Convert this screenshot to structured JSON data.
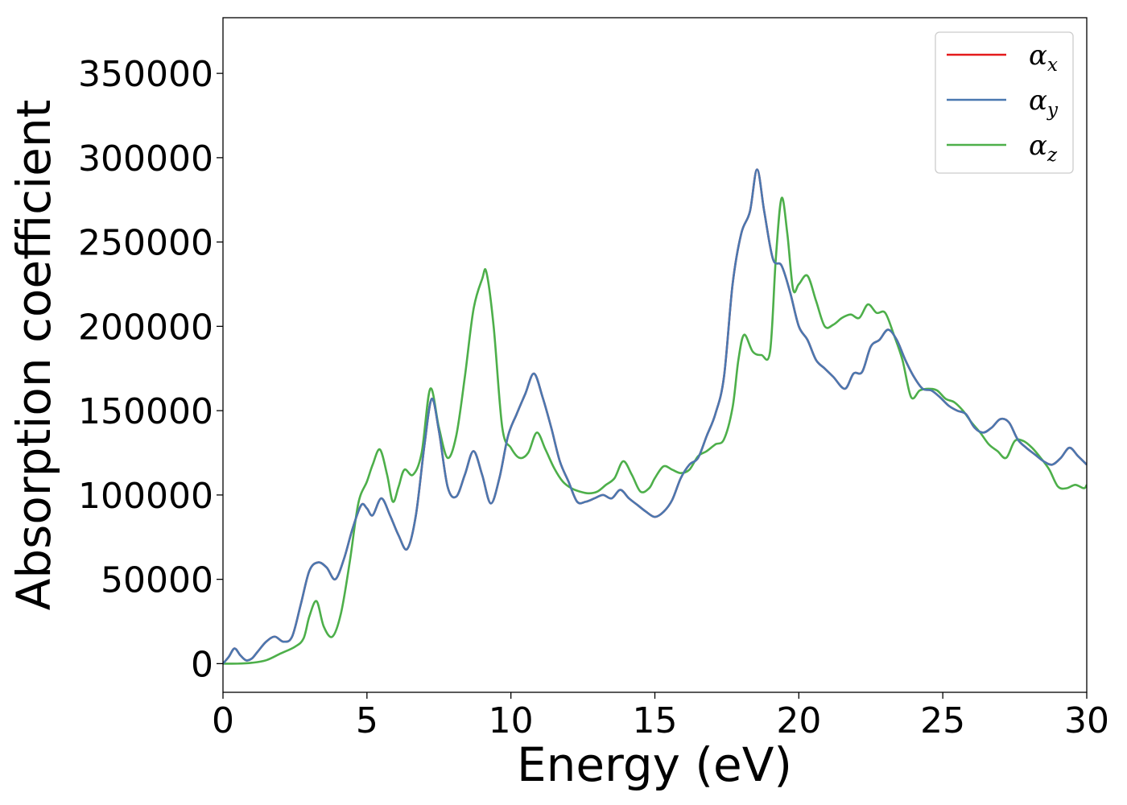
{
  "chart_data": {
    "type": "line",
    "xlabel": "Energy (eV)",
    "ylabel": "Absorption coefficient",
    "xlim": [
      0,
      30
    ],
    "ylim": [
      -17000,
      383000
    ],
    "xticks": [
      0,
      5,
      10,
      15,
      20,
      25,
      30
    ],
    "yticks": [
      0,
      50000,
      100000,
      150000,
      200000,
      250000,
      300000,
      350000
    ],
    "grid": false,
    "legend_position": "top-right",
    "series": [
      {
        "name": "α",
        "subscript": "x",
        "color": "#e41a1c",
        "x": [
          0,
          0.2,
          0.4,
          0.6,
          0.8,
          1.0,
          1.2,
          1.5,
          1.8,
          2.1,
          2.4,
          2.7,
          3.0,
          3.3,
          3.6,
          3.9,
          4.2,
          4.5,
          4.8,
          5.0,
          5.2,
          5.5,
          5.8,
          6.1,
          6.4,
          6.7,
          7.0,
          7.25,
          7.5,
          7.8,
          8.1,
          8.4,
          8.7,
          9.0,
          9.3,
          9.6,
          9.9,
          10.2,
          10.5,
          10.8,
          11.1,
          11.4,
          11.7,
          12.0,
          12.3,
          12.6,
          12.9,
          13.2,
          13.5,
          13.8,
          14.1,
          14.4,
          14.7,
          15.0,
          15.3,
          15.6,
          15.9,
          16.2,
          16.5,
          16.8,
          17.1,
          17.4,
          17.7,
          18.0,
          18.3,
          18.55,
          18.8,
          19.1,
          19.4,
          19.7,
          20.0,
          20.3,
          20.6,
          20.9,
          21.2,
          21.6,
          21.9,
          22.2,
          22.5,
          22.8,
          23.1,
          23.4,
          23.7,
          24.0,
          24.3,
          24.6,
          24.9,
          25.2,
          25.5,
          25.8,
          26.1,
          26.4,
          26.7,
          27.0,
          27.3,
          27.6,
          27.9,
          28.2,
          28.5,
          28.8,
          29.1,
          29.4,
          29.7,
          30.0
        ],
        "y": [
          0,
          4000,
          9000,
          5000,
          2000,
          3000,
          7000,
          13000,
          16000,
          13000,
          16000,
          35000,
          55000,
          60000,
          57000,
          50000,
          62000,
          80000,
          94000,
          92000,
          88000,
          98000,
          88000,
          76000,
          68000,
          88000,
          130000,
          157000,
          138000,
          105000,
          99000,
          112000,
          126000,
          112000,
          95000,
          110000,
          135000,
          148000,
          160000,
          172000,
          158000,
          140000,
          120000,
          108000,
          96000,
          96000,
          98000,
          100000,
          98000,
          103000,
          98000,
          94000,
          90000,
          87000,
          90000,
          97000,
          110000,
          118000,
          122000,
          135000,
          148000,
          170000,
          225000,
          255000,
          268000,
          293000,
          268000,
          240000,
          236000,
          220000,
          200000,
          192000,
          180000,
          175000,
          170000,
          163000,
          172000,
          173000,
          188000,
          192000,
          198000,
          192000,
          180000,
          170000,
          163000,
          162000,
          158000,
          153000,
          150000,
          148000,
          140000,
          137000,
          140000,
          145000,
          143000,
          133000,
          128000,
          124000,
          120000,
          118000,
          122000,
          128000,
          123000,
          118000
        ]
      },
      {
        "name": "α",
        "subscript": "y",
        "color": "#4a78b0",
        "x": [
          0,
          0.2,
          0.4,
          0.6,
          0.8,
          1.0,
          1.2,
          1.5,
          1.8,
          2.1,
          2.4,
          2.7,
          3.0,
          3.3,
          3.6,
          3.9,
          4.2,
          4.5,
          4.8,
          5.0,
          5.2,
          5.5,
          5.8,
          6.1,
          6.4,
          6.7,
          7.0,
          7.25,
          7.5,
          7.8,
          8.1,
          8.4,
          8.7,
          9.0,
          9.3,
          9.6,
          9.9,
          10.2,
          10.5,
          10.8,
          11.1,
          11.4,
          11.7,
          12.0,
          12.3,
          12.6,
          12.9,
          13.2,
          13.5,
          13.8,
          14.1,
          14.4,
          14.7,
          15.0,
          15.3,
          15.6,
          15.9,
          16.2,
          16.5,
          16.8,
          17.1,
          17.4,
          17.7,
          18.0,
          18.3,
          18.55,
          18.8,
          19.1,
          19.4,
          19.7,
          20.0,
          20.3,
          20.6,
          20.9,
          21.2,
          21.6,
          21.9,
          22.2,
          22.5,
          22.8,
          23.1,
          23.4,
          23.7,
          24.0,
          24.3,
          24.6,
          24.9,
          25.2,
          25.5,
          25.8,
          26.1,
          26.4,
          26.7,
          27.0,
          27.3,
          27.6,
          27.9,
          28.2,
          28.5,
          28.8,
          29.1,
          29.4,
          29.7,
          30.0
        ],
        "y": [
          0,
          4000,
          9000,
          5000,
          2000,
          3000,
          7000,
          13000,
          16000,
          13000,
          16000,
          35000,
          55000,
          60000,
          57000,
          50000,
          62000,
          80000,
          94000,
          92000,
          88000,
          98000,
          88000,
          76000,
          68000,
          88000,
          130000,
          157000,
          138000,
          105000,
          99000,
          112000,
          126000,
          112000,
          95000,
          110000,
          135000,
          148000,
          160000,
          172000,
          158000,
          140000,
          120000,
          108000,
          96000,
          96000,
          98000,
          100000,
          98000,
          103000,
          98000,
          94000,
          90000,
          87000,
          90000,
          97000,
          110000,
          118000,
          122000,
          135000,
          148000,
          170000,
          225000,
          255000,
          268000,
          293000,
          268000,
          240000,
          236000,
          220000,
          200000,
          192000,
          180000,
          175000,
          170000,
          163000,
          172000,
          173000,
          188000,
          192000,
          198000,
          192000,
          180000,
          170000,
          163000,
          162000,
          158000,
          153000,
          150000,
          148000,
          140000,
          137000,
          140000,
          145000,
          143000,
          133000,
          128000,
          124000,
          120000,
          118000,
          122000,
          128000,
          123000,
          118000
        ]
      },
      {
        "name": "α",
        "subscript": "z",
        "color": "#4daf4a",
        "x": [
          0,
          0.5,
          1.0,
          1.5,
          2.0,
          2.5,
          2.8,
          3.0,
          3.25,
          3.5,
          3.8,
          4.1,
          4.4,
          4.7,
          5.0,
          5.2,
          5.45,
          5.7,
          5.9,
          6.1,
          6.3,
          6.6,
          6.9,
          7.2,
          7.5,
          7.8,
          8.1,
          8.4,
          8.7,
          9.0,
          9.15,
          9.4,
          9.7,
          10.0,
          10.3,
          10.6,
          10.9,
          11.2,
          11.5,
          11.8,
          12.1,
          12.4,
          12.7,
          13.0,
          13.3,
          13.6,
          13.9,
          14.2,
          14.5,
          14.8,
          15.0,
          15.3,
          15.6,
          15.9,
          16.2,
          16.5,
          16.8,
          17.1,
          17.4,
          17.7,
          17.9,
          18.1,
          18.4,
          18.7,
          19.0,
          19.2,
          19.4,
          19.6,
          19.8,
          20.0,
          20.3,
          20.6,
          20.9,
          21.2,
          21.5,
          21.8,
          22.1,
          22.4,
          22.7,
          23.0,
          23.3,
          23.6,
          23.9,
          24.2,
          24.5,
          24.8,
          25.1,
          25.4,
          25.7,
          26.0,
          26.3,
          26.6,
          26.9,
          27.2,
          27.5,
          27.8,
          28.1,
          28.4,
          28.7,
          29.0,
          29.3,
          29.6,
          29.9,
          30.0
        ],
        "y": [
          0,
          0,
          500,
          2000,
          6000,
          10000,
          15000,
          28000,
          37000,
          22000,
          16000,
          30000,
          60000,
          95000,
          108000,
          118000,
          127000,
          112000,
          96000,
          105000,
          115000,
          112000,
          125000,
          163000,
          140000,
          122000,
          135000,
          170000,
          210000,
          228000,
          232000,
          200000,
          140000,
          128000,
          122000,
          125000,
          137000,
          127000,
          116000,
          108000,
          104000,
          102000,
          101000,
          102000,
          106000,
          110000,
          120000,
          112000,
          102000,
          104000,
          110000,
          117000,
          115000,
          113000,
          115000,
          123000,
          126000,
          130000,
          133000,
          152000,
          180000,
          195000,
          185000,
          183000,
          185000,
          240000,
          276000,
          255000,
          222000,
          225000,
          230000,
          215000,
          200000,
          201000,
          205000,
          207000,
          205000,
          213000,
          208000,
          208000,
          195000,
          180000,
          158000,
          162000,
          163000,
          162000,
          157000,
          155000,
          150000,
          143000,
          137000,
          130000,
          126000,
          122000,
          132000,
          132000,
          128000,
          122000,
          115000,
          105000,
          104000,
          106000,
          104000,
          106000
        ]
      }
    ]
  }
}
